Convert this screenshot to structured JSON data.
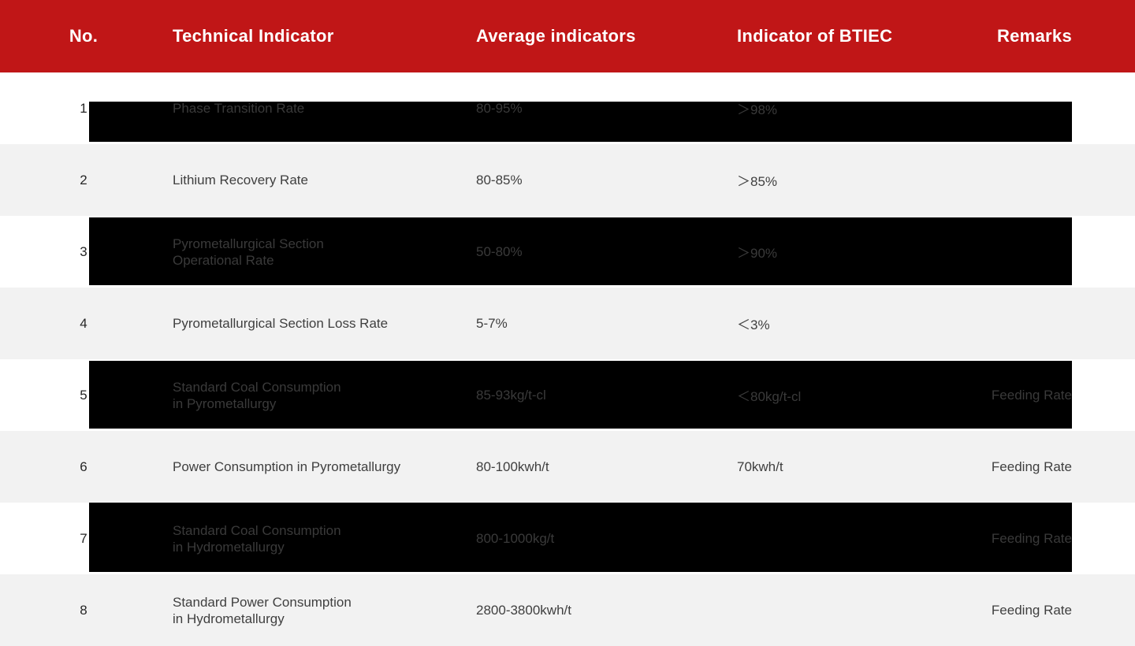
{
  "colors": {
    "header_bg": "#c01617",
    "header_text": "#ffffff",
    "row_alt": "#f2f2f2",
    "row_light": "#ffffff",
    "highlight_bar": "#000000",
    "text_main": "#3f3f3f"
  },
  "header": {
    "columns": {
      "no": "No.",
      "indicator": "Technical Indicator",
      "average": "Average indicators",
      "btiec": "Indicator of BTIEC",
      "remarks": "Remarks"
    }
  },
  "rows": [
    {
      "no": "1",
      "indicator": "Phase Transition Rate",
      "average": "80-95%",
      "btiec": "＞98%",
      "remarks": ""
    },
    {
      "no": "2",
      "indicator": "Lithium Recovery Rate",
      "average": "80-85%",
      "btiec": "＞85%",
      "remarks": ""
    },
    {
      "no": "3",
      "indicator": "Pyrometallurgical Section\nOperational Rate",
      "average": "50-80%",
      "btiec": "＞90%",
      "remarks": ""
    },
    {
      "no": "4",
      "indicator": "Pyrometallurgical Section Loss Rate",
      "average": "5-7%",
      "btiec": "＜3%",
      "remarks": ""
    },
    {
      "no": "5",
      "indicator": "Standard Coal Consumption\nin Pyrometallurgy",
      "average": "85-93kg/t-cl",
      "btiec": "＜80kg/t-cl",
      "remarks": "Feeding Rate"
    },
    {
      "no": "6",
      "indicator": "Power Consumption in Pyrometallurgy",
      "average": "80-100kwh/t",
      "btiec": "70kwh/t",
      "remarks": "Feeding Rate"
    },
    {
      "no": "7",
      "indicator": "Standard Coal Consumption\nin Hydrometallurgy",
      "average": "800-1000kg/t",
      "btiec": "",
      "remarks": "Feeding Rate"
    },
    {
      "no": "8",
      "indicator": "Standard Power Consumption\nin Hydrometallurgy",
      "average": "2800-3800kwh/t",
      "btiec": "",
      "remarks": "Feeding Rate"
    }
  ]
}
